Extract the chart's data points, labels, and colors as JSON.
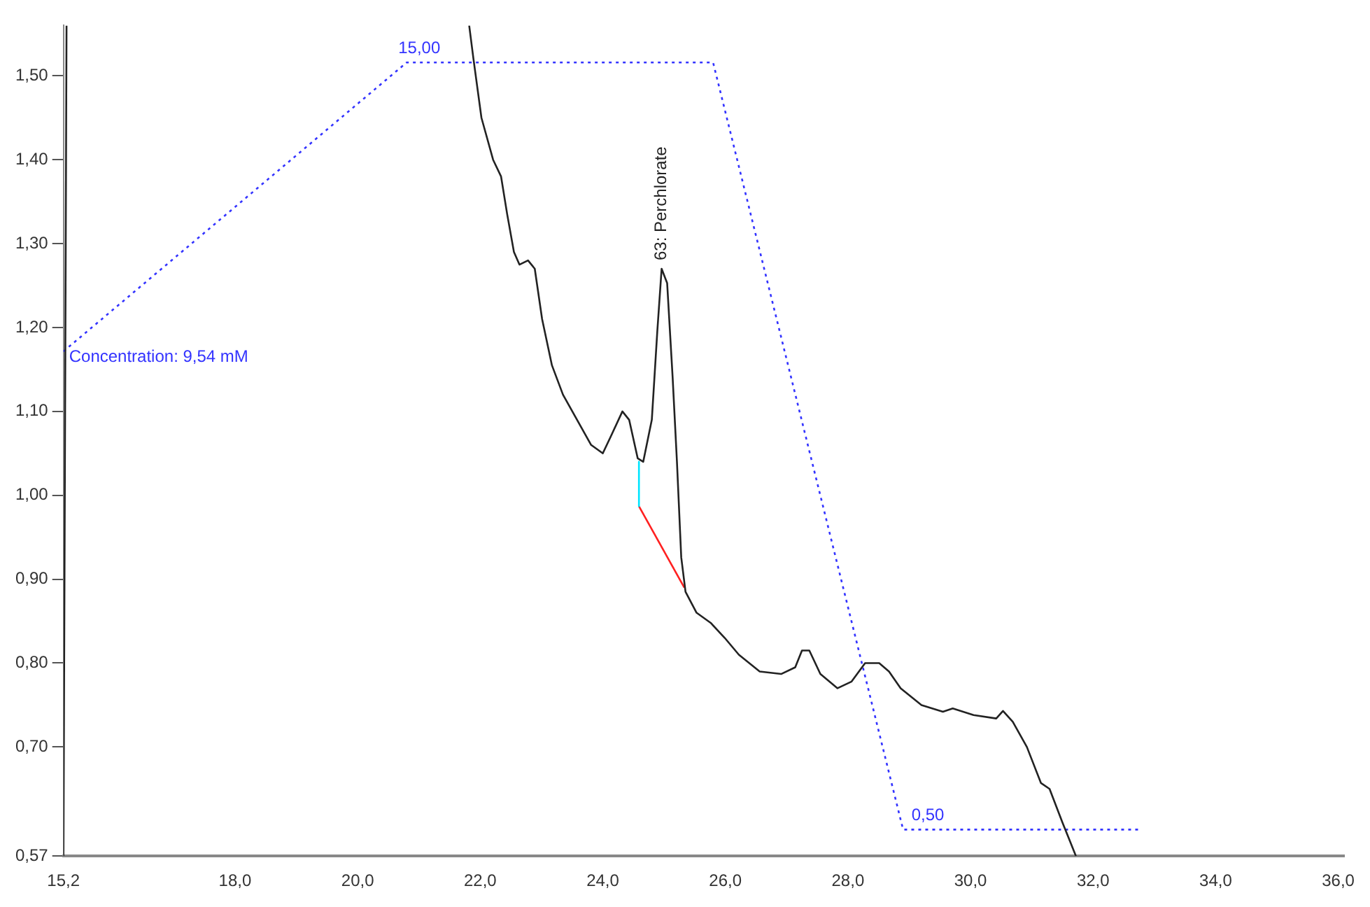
{
  "chart_data": {
    "type": "line",
    "marker": "none",
    "xlim": [
      15.2,
      36.1
    ],
    "ylim": [
      0.57,
      1.56
    ],
    "y2lim": [
      0,
      15.7
    ],
    "xticks": [
      {
        "value": 15.2,
        "label": "15,2"
      },
      {
        "value": 18,
        "label": "18,0"
      },
      {
        "value": 20,
        "label": "20,0"
      },
      {
        "value": 22,
        "label": "22,0"
      },
      {
        "value": 24,
        "label": "24,0"
      },
      {
        "value": 26,
        "label": "26,0"
      },
      {
        "value": 28,
        "label": "28,0"
      },
      {
        "value": 30,
        "label": "30,0"
      },
      {
        "value": 32,
        "label": "32,0"
      },
      {
        "value": 34,
        "label": "34,0"
      },
      {
        "value": 36,
        "label": "36,0"
      }
    ],
    "yticks": [
      {
        "value": 0.57,
        "label": "0,57"
      },
      {
        "value": 0.7,
        "label": "0,70"
      },
      {
        "value": 0.8,
        "label": "0,80"
      },
      {
        "value": 0.9,
        "label": "0,90"
      },
      {
        "value": 1.0,
        "label": "1,00"
      },
      {
        "value": 1.1,
        "label": "1,10"
      },
      {
        "value": 1.2,
        "label": "1,20"
      },
      {
        "value": 1.3,
        "label": "1,30"
      },
      {
        "value": 1.4,
        "label": "1,40"
      },
      {
        "value": 1.5,
        "label": "1,50"
      }
    ],
    "annotations": [
      {
        "text": "63: Perchlorate",
        "x": 24.96,
        "y": 1.27
      }
    ],
    "series": [
      {
        "color": "#222222",
        "line_style": "solid",
        "x": [
          15.2,
          15.25,
          15.3,
          21.82,
          21.89,
          22.02,
          22.21,
          22.34,
          22.44,
          22.55,
          22.64,
          22.78,
          22.89,
          23.01,
          23.17,
          23.35,
          23.58,
          23.81,
          24.0,
          24.13,
          24.32,
          24.43,
          24.57,
          24.66,
          24.8,
          24.89,
          24.96,
          25.05,
          25.14,
          25.21,
          25.28,
          25.35,
          25.53,
          25.76,
          25.99,
          26.22,
          26.56,
          26.91,
          27.14,
          27.25,
          27.37,
          27.55,
          27.83,
          28.06,
          28.28,
          28.51,
          28.67,
          28.86,
          29.2,
          29.55,
          29.71,
          30.05,
          30.42,
          30.53,
          30.69,
          30.92,
          31.15,
          31.29,
          31.5,
          31.72
        ],
        "values": [
          0.57,
          1.56,
          null,
          1.56,
          1.52,
          1.45,
          1.4,
          1.38,
          1.335,
          1.29,
          1.275,
          1.28,
          1.27,
          1.21,
          1.155,
          1.12,
          1.09,
          1.06,
          1.05,
          1.07,
          1.1,
          1.09,
          1.044,
          1.04,
          1.09,
          1.196,
          1.27,
          1.253,
          1.14,
          1.04,
          0.926,
          0.885,
          0.86,
          0.848,
          0.83,
          0.81,
          0.79,
          0.787,
          0.795,
          0.815,
          0.815,
          0.787,
          0.77,
          0.778,
          0.8,
          0.8,
          0.79,
          0.77,
          0.75,
          0.742,
          0.746,
          0.738,
          0.734,
          0.743,
          0.73,
          0.7,
          0.657,
          0.65,
          0.61,
          0.57
        ]
      },
      {
        "color": "#00e5ff",
        "line_style": "solid",
        "x": [
          24.59,
          24.59
        ],
        "values": [
          1.04,
          0.987
        ]
      },
      {
        "color": "#ff2020",
        "line_style": "solid",
        "x": [
          24.59,
          25.33
        ],
        "values": [
          0.987,
          0.89
        ]
      },
      {
        "color": "#3333ff",
        "line_style": "dotted",
        "axis": "y2",
        "x": [
          15.2,
          20.8,
          25.8,
          28.9,
          32.8
        ],
        "values": [
          9.54,
          15.0,
          15.0,
          0.5,
          0.5
        ],
        "value_labels": [
          "Concentration: 9,54 mM",
          "15,00",
          null,
          "0,50",
          null
        ]
      }
    ]
  }
}
